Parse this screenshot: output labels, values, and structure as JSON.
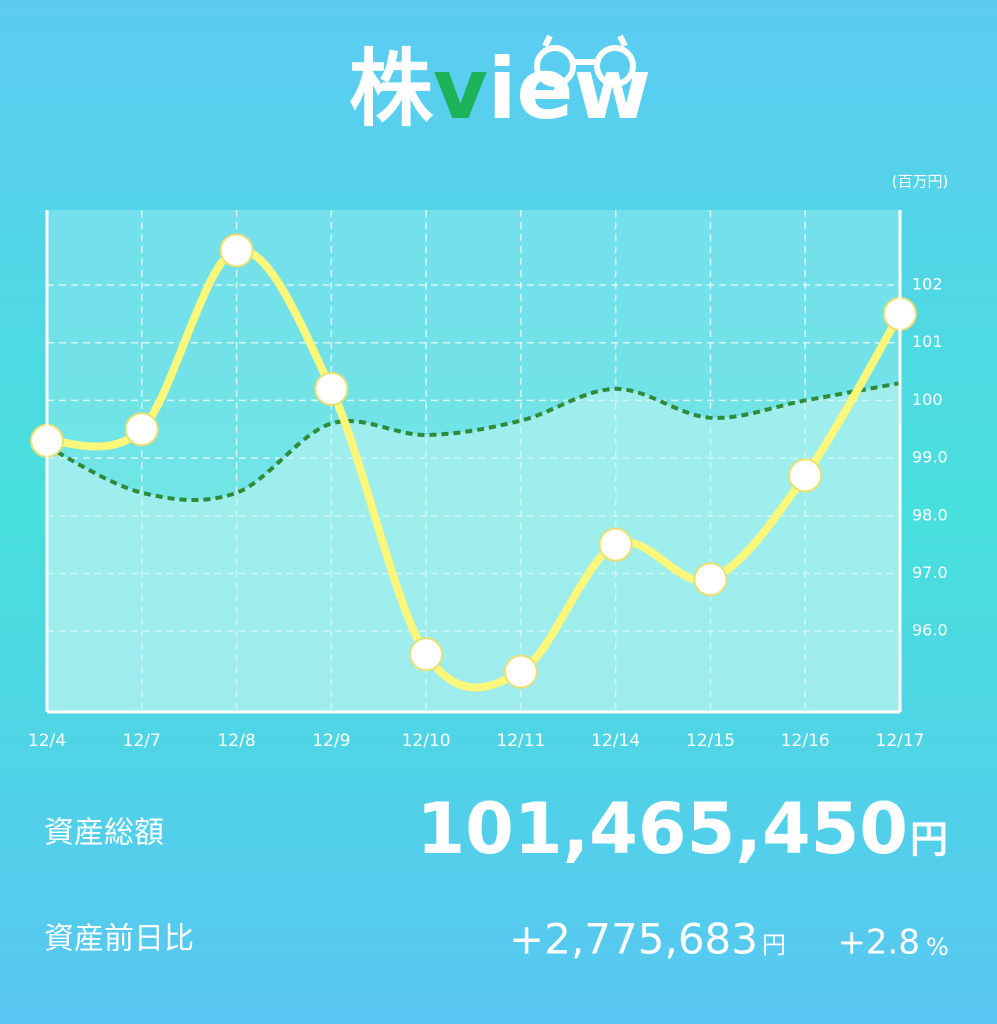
{
  "header": {
    "logo": [
      "株",
      "v",
      "iew"
    ]
  },
  "chart_data": {
    "type": "line",
    "unit_label": "(百万円)",
    "categories": [
      "12/4",
      "12/7",
      "12/8",
      "12/9",
      "12/10",
      "12/11",
      "12/14",
      "12/15",
      "12/16",
      "12/17"
    ],
    "series": [
      {
        "color": "#2e8b3a",
        "values": [
          99.2,
          98.4,
          98.4,
          99.6,
          99.4,
          99.65,
          100.2,
          99.7,
          100.0,
          100.3
        ]
      },
      {
        "color": "#fbf77a",
        "values": [
          99.3,
          99.5,
          102.6,
          100.2,
          95.6,
          95.3,
          97.5,
          96.9,
          98.7,
          101.5
        ]
      }
    ],
    "ylim": [
      94.6,
      103.3
    ],
    "yticks": [
      {
        "value": 96,
        "label": "96.0"
      },
      {
        "value": 97,
        "label": "97.0"
      },
      {
        "value": 98,
        "label": "98.0"
      },
      {
        "value": 99,
        "label": "99.0"
      },
      100,
      101,
      102
    ],
    "grid": true
  },
  "summary": {
    "total_label": "資産総額",
    "total_value": "101,465,450",
    "total_unit": "円",
    "change_label": "資産前日比",
    "change_value": "+2,775,683",
    "change_unit": "円",
    "change_pct": "+2.8",
    "change_pct_unit": "%"
  }
}
